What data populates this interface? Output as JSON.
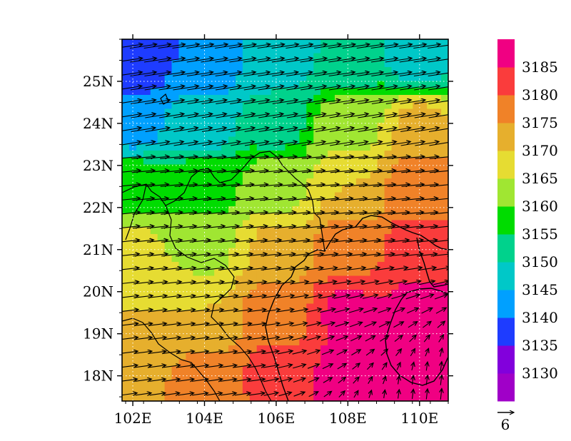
{
  "chart_data": {
    "type": "heatmap",
    "title": "",
    "lon_range": [
      101.7,
      110.8
    ],
    "lat_range": [
      17.4,
      26.0
    ],
    "x_ticks": [
      "102E",
      "104E",
      "106E",
      "108E",
      "110E"
    ],
    "x_tick_values": [
      102,
      104,
      106,
      108,
      110
    ],
    "y_ticks": [
      "18N",
      "19N",
      "20N",
      "21N",
      "22N",
      "23N",
      "24N",
      "25N"
    ],
    "y_tick_values": [
      18,
      19,
      20,
      21,
      22,
      23,
      24,
      25
    ],
    "grid": "dotted",
    "colorbar": {
      "labels": [
        "3130",
        "3135",
        "3140",
        "3145",
        "3150",
        "3155",
        "3160",
        "3165",
        "3170",
        "3175",
        "3180",
        "3185"
      ],
      "colors": [
        "#a000c8",
        "#8200dc",
        "#1e3cff",
        "#00a0ff",
        "#00c8c8",
        "#00d28c",
        "#00dc00",
        "#a0e632",
        "#e6dc32",
        "#e6af2d",
        "#f08228",
        "#fa3c3c",
        "#f00082"
      ]
    },
    "field_samples": [
      {
        "lon": 102.0,
        "lat": 25.5,
        "value": 3136
      },
      {
        "lon": 104.0,
        "lat": 25.5,
        "value": 3140
      },
      {
        "lon": 106.0,
        "lat": 25.5,
        "value": 3147
      },
      {
        "lon": 108.0,
        "lat": 25.5,
        "value": 3150
      },
      {
        "lon": 110.0,
        "lat": 25.5,
        "value": 3147
      },
      {
        "lon": 102.0,
        "lat": 24.0,
        "value": 3143
      },
      {
        "lon": 104.0,
        "lat": 24.0,
        "value": 3147
      },
      {
        "lon": 106.0,
        "lat": 24.0,
        "value": 3153
      },
      {
        "lon": 108.0,
        "lat": 24.0,
        "value": 3163
      },
      {
        "lon": 110.0,
        "lat": 24.0,
        "value": 3171
      },
      {
        "lon": 102.0,
        "lat": 22.5,
        "value": 3158
      },
      {
        "lon": 104.0,
        "lat": 22.5,
        "value": 3158
      },
      {
        "lon": 106.0,
        "lat": 22.5,
        "value": 3163
      },
      {
        "lon": 108.0,
        "lat": 22.5,
        "value": 3170
      },
      {
        "lon": 110.0,
        "lat": 22.5,
        "value": 3178
      },
      {
        "lon": 102.0,
        "lat": 21.0,
        "value": 3166
      },
      {
        "lon": 104.0,
        "lat": 21.0,
        "value": 3164
      },
      {
        "lon": 106.0,
        "lat": 21.0,
        "value": 3171
      },
      {
        "lon": 108.0,
        "lat": 21.0,
        "value": 3178
      },
      {
        "lon": 110.0,
        "lat": 21.0,
        "value": 3183
      },
      {
        "lon": 102.0,
        "lat": 19.5,
        "value": 3170
      },
      {
        "lon": 104.0,
        "lat": 19.5,
        "value": 3170
      },
      {
        "lon": 106.0,
        "lat": 19.5,
        "value": 3178
      },
      {
        "lon": 108.0,
        "lat": 19.5,
        "value": 3186
      },
      {
        "lon": 110.0,
        "lat": 19.5,
        "value": 3187
      },
      {
        "lon": 102.0,
        "lat": 18.0,
        "value": 3175
      },
      {
        "lon": 104.0,
        "lat": 18.0,
        "value": 3176
      },
      {
        "lon": 106.0,
        "lat": 18.0,
        "value": 3182
      },
      {
        "lon": 108.0,
        "lat": 18.0,
        "value": 3187
      },
      {
        "lon": 110.0,
        "lat": 18.0,
        "value": 3188
      }
    ],
    "vectors": {
      "reference_label": "6",
      "reference_speed": 6
    }
  }
}
